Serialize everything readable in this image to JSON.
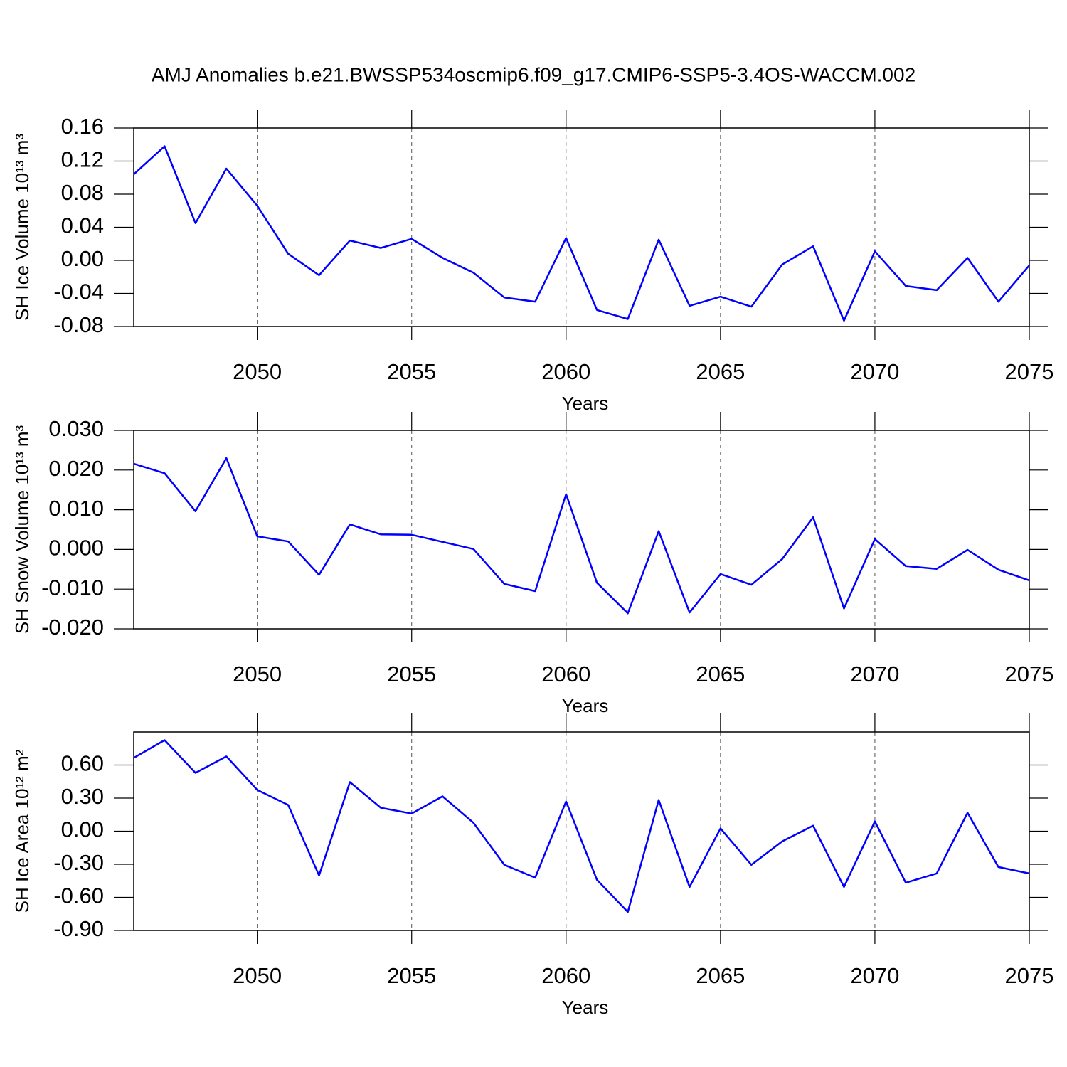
{
  "title": "AMJ Anomalies b.e21.BWSSP534oscmip6.f09_g17.CMIP6-SSP5-3.4OS-WACCM.002",
  "chart_data": [
    {
      "type": "line",
      "y_label": "SH Ice Volume 10¹³ m³",
      "x_label": "Years",
      "x": [
        2046,
        2047,
        2048,
        2049,
        2050,
        2051,
        2052,
        2053,
        2054,
        2055,
        2056,
        2057,
        2058,
        2059,
        2060,
        2061,
        2062,
        2063,
        2064,
        2065,
        2066,
        2067,
        2068,
        2069,
        2070,
        2071,
        2072,
        2073,
        2074,
        2075
      ],
      "values": [
        0.104,
        0.138,
        0.045,
        0.111,
        0.066,
        0.008,
        -0.018,
        0.024,
        0.015,
        0.026,
        0.003,
        -0.015,
        -0.045,
        -0.05,
        0.027,
        -0.06,
        -0.071,
        0.025,
        -0.055,
        -0.044,
        -0.056,
        -0.005,
        0.017,
        -0.073,
        0.011,
        -0.031,
        -0.036,
        0.003,
        -0.05,
        -0.006
      ],
      "color": "#0000ff",
      "xlim": [
        2046,
        2075
      ],
      "xticks": [
        2050,
        2055,
        2060,
        2065,
        2070,
        2075
      ],
      "xgrid": true,
      "ylim": [
        -0.08,
        0.16
      ],
      "yticks": [
        0.16,
        0.12,
        0.08,
        0.04,
        {
          "value": 0,
          "label": "0.00"
        },
        -0.04,
        -0.08
      ]
    },
    {
      "type": "line",
      "y_label": "SH Snow Volume 10¹³ m³",
      "x_label": "Years",
      "x": [
        2046,
        2047,
        2048,
        2049,
        2050,
        2051,
        2052,
        2053,
        2054,
        2055,
        2056,
        2057,
        2058,
        2059,
        2060,
        2061,
        2062,
        2063,
        2064,
        2065,
        2066,
        2067,
        2068,
        2069,
        2070,
        2071,
        2072,
        2073,
        2074,
        2075
      ],
      "values": [
        0.0216,
        0.0192,
        0.0096,
        0.023,
        0.0033,
        0.002,
        -0.0064,
        0.0063,
        0.0038,
        0.0037,
        0.0019,
        0.0001,
        -0.0087,
        -0.0105,
        0.0139,
        -0.0084,
        -0.0161,
        0.0046,
        -0.0159,
        -0.0062,
        -0.0089,
        -0.0024,
        0.0081,
        -0.0149,
        0.0026,
        -0.0042,
        -0.0049,
        -0.0001,
        -0.0051,
        -0.0078
      ],
      "color": "#0000ff",
      "xlim": [
        2046,
        2075
      ],
      "xticks": [
        2050,
        2055,
        2060,
        2065,
        2070,
        2075
      ],
      "xgrid": true,
      "ylim": [
        -0.02,
        0.03
      ],
      "yticks": [
        {
          "value": 0.03,
          "label": "0.030"
        },
        {
          "value": 0.02,
          "label": "0.020"
        },
        {
          "value": 0.01,
          "label": "0.010"
        },
        {
          "value": 0,
          "label": "0.000"
        },
        {
          "value": -0.01,
          "label": "-0.010"
        },
        {
          "value": -0.02,
          "label": "-0.020"
        }
      ]
    },
    {
      "type": "line",
      "y_label": "SH Ice Area 10¹² m²",
      "x_label": "Years",
      "x": [
        2046,
        2047,
        2048,
        2049,
        2050,
        2051,
        2052,
        2053,
        2054,
        2055,
        2056,
        2057,
        2058,
        2059,
        2060,
        2061,
        2062,
        2063,
        2064,
        2065,
        2066,
        2067,
        2068,
        2069,
        2070,
        2071,
        2072,
        2073,
        2074,
        2075
      ],
      "values": [
        0.665,
        0.826,
        0.529,
        0.678,
        0.374,
        0.238,
        -0.402,
        0.445,
        0.212,
        0.16,
        0.316,
        0.076,
        -0.305,
        -0.422,
        0.27,
        -0.441,
        -0.732,
        0.283,
        -0.506,
        0.025,
        -0.305,
        -0.092,
        0.05,
        -0.506,
        0.089,
        -0.467,
        -0.383,
        0.167,
        -0.325,
        -0.383
      ],
      "color": "#0000ff",
      "xlim": [
        2046,
        2075
      ],
      "xticks": [
        2050,
        2055,
        2060,
        2065,
        2070,
        2075
      ],
      "xgrid": true,
      "ylim": [
        -0.9,
        0.9
      ],
      "yticks": [
        {
          "value": 0.6,
          "label": "0.60"
        },
        {
          "value": 0.3,
          "label": "0.30"
        },
        {
          "value": 0,
          "label": "0.00"
        },
        {
          "value": -0.3,
          "label": "-0.30"
        },
        {
          "value": -0.6,
          "label": "-0.60"
        },
        {
          "value": -0.9,
          "label": "-0.90"
        }
      ]
    }
  ]
}
